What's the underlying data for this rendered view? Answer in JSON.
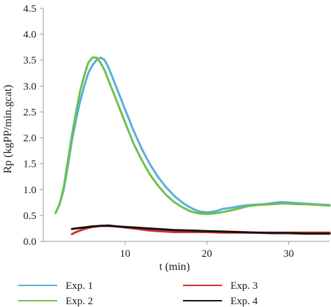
{
  "chart_data": {
    "type": "line",
    "title": "",
    "xlabel": "t (min)",
    "ylabel": "Rp (kgPP/min.gcat)",
    "xlim": [
      0,
      35
    ],
    "ylim": [
      0,
      4.5
    ],
    "xticks": [
      10,
      20,
      30
    ],
    "yticks": [
      0.0,
      0.5,
      1.0,
      1.5,
      2.0,
      2.5,
      3.0,
      3.5,
      4.0,
      4.5
    ],
    "ytick_labels": [
      "0.0",
      "0.5",
      "1.0",
      "1.5",
      "2.0",
      "2.5",
      "3.0",
      "3.5",
      "4.0",
      "4.5"
    ],
    "xtick_labels": [
      "10",
      "20",
      "30"
    ],
    "grid": false,
    "legend_position": "bottom",
    "series": [
      {
        "name": "Exp. 1",
        "color": "#5aacdc",
        "x": [
          1.5,
          2.0,
          2.5,
          3.0,
          3.5,
          4.0,
          4.5,
          5.0,
          5.5,
          6.0,
          6.5,
          7.0,
          7.5,
          8.0,
          8.5,
          9.0,
          10.0,
          11.0,
          12.0,
          13.0,
          14.0,
          15.0,
          16.0,
          17.0,
          18.0,
          19.0,
          20.0,
          21.0,
          22.0,
          23.0,
          24.0,
          25.0,
          26.0,
          27.0,
          28.0,
          29.0,
          30.0,
          31.0,
          32.0,
          33.0,
          34.0,
          35.0
        ],
        "y": [
          0.55,
          0.72,
          1.0,
          1.45,
          1.95,
          2.35,
          2.7,
          3.0,
          3.25,
          3.4,
          3.5,
          3.55,
          3.5,
          3.35,
          3.15,
          2.95,
          2.55,
          2.15,
          1.8,
          1.5,
          1.25,
          1.05,
          0.88,
          0.75,
          0.65,
          0.58,
          0.56,
          0.58,
          0.63,
          0.65,
          0.68,
          0.7,
          0.71,
          0.72,
          0.74,
          0.76,
          0.75,
          0.74,
          0.73,
          0.72,
          0.71,
          0.7
        ]
      },
      {
        "name": "Exp. 2",
        "color": "#6cc04a",
        "x": [
          1.5,
          2.0,
          2.5,
          3.0,
          3.5,
          4.0,
          4.5,
          5.0,
          5.5,
          6.0,
          6.5,
          7.0,
          7.5,
          8.0,
          8.5,
          9.0,
          10.0,
          11.0,
          12.0,
          13.0,
          14.0,
          15.0,
          16.0,
          17.0,
          18.0,
          19.0,
          20.0,
          21.0,
          22.0,
          23.0,
          24.0,
          25.0,
          26.0,
          27.0,
          28.0,
          29.0,
          30.0,
          31.0,
          32.0,
          33.0,
          34.0,
          35.0
        ],
        "y": [
          0.55,
          0.72,
          1.05,
          1.55,
          2.05,
          2.5,
          2.9,
          3.2,
          3.45,
          3.55,
          3.55,
          3.45,
          3.3,
          3.1,
          2.9,
          2.7,
          2.3,
          1.9,
          1.58,
          1.3,
          1.08,
          0.9,
          0.76,
          0.66,
          0.58,
          0.54,
          0.53,
          0.54,
          0.57,
          0.6,
          0.64,
          0.68,
          0.7,
          0.71,
          0.72,
          0.73,
          0.73,
          0.72,
          0.72,
          0.71,
          0.7,
          0.69
        ]
      },
      {
        "name": "Exp. 3",
        "color": "#d62c2c",
        "x": [
          3.5,
          4.0,
          5.0,
          6.0,
          7.0,
          8.0,
          9.0,
          10.0,
          11.0,
          12.0,
          13.0,
          14.0,
          15.0,
          16.0,
          17.0,
          18.0,
          19.0,
          20.0,
          22.0,
          24.0,
          26.0,
          28.0,
          30.0,
          32.0,
          34.0,
          35.0
        ],
        "y": [
          0.14,
          0.18,
          0.24,
          0.28,
          0.3,
          0.31,
          0.29,
          0.27,
          0.25,
          0.23,
          0.21,
          0.2,
          0.19,
          0.18,
          0.18,
          0.18,
          0.18,
          0.18,
          0.17,
          0.17,
          0.17,
          0.17,
          0.17,
          0.17,
          0.17,
          0.17
        ]
      },
      {
        "name": "Exp. 4",
        "color": "#111111",
        "x": [
          3.5,
          4.0,
          5.0,
          6.0,
          7.0,
          8.0,
          9.0,
          10.0,
          12.0,
          14.0,
          16.0,
          18.0,
          20.0,
          22.0,
          24.0,
          26.0,
          28.0,
          30.0,
          32.0,
          34.0,
          35.0
        ],
        "y": [
          0.24,
          0.25,
          0.27,
          0.29,
          0.3,
          0.3,
          0.29,
          0.28,
          0.26,
          0.24,
          0.22,
          0.21,
          0.2,
          0.19,
          0.18,
          0.17,
          0.16,
          0.16,
          0.15,
          0.15,
          0.15
        ]
      }
    ]
  }
}
